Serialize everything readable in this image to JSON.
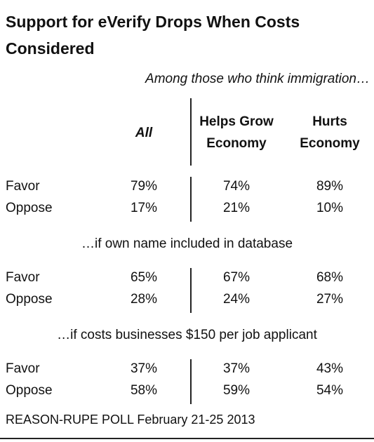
{
  "header": {
    "title": "Support for eVerify Drops When Costs Considered",
    "subtitle": "Among those who think immigration…"
  },
  "table": {
    "columns": [
      "All",
      "Helps Grow Economy",
      "Hurts Economy"
    ],
    "sections": [
      {
        "rows": [
          {
            "label": "Favor",
            "values": [
              "79%",
              "74%",
              "89%"
            ]
          },
          {
            "label": "Oppose",
            "values": [
              "17%",
              "21%",
              "10%"
            ]
          }
        ]
      },
      {
        "label": "…if own name included in database",
        "rows": [
          {
            "label": "Favor",
            "values": [
              "65%",
              "67%",
              "68%"
            ]
          },
          {
            "label": "Oppose",
            "values": [
              "28%",
              "24%",
              "27%"
            ]
          }
        ]
      },
      {
        "label": "…if costs businesses $150 per job applicant",
        "rows": [
          {
            "label": "Favor",
            "values": [
              "37%",
              "37%",
              "43%"
            ]
          },
          {
            "label": "Oppose",
            "values": [
              "58%",
              "59%",
              "54%"
            ]
          }
        ]
      }
    ]
  },
  "footer": {
    "source": "REASON-RUPE POLL February 21-25 2013"
  }
}
